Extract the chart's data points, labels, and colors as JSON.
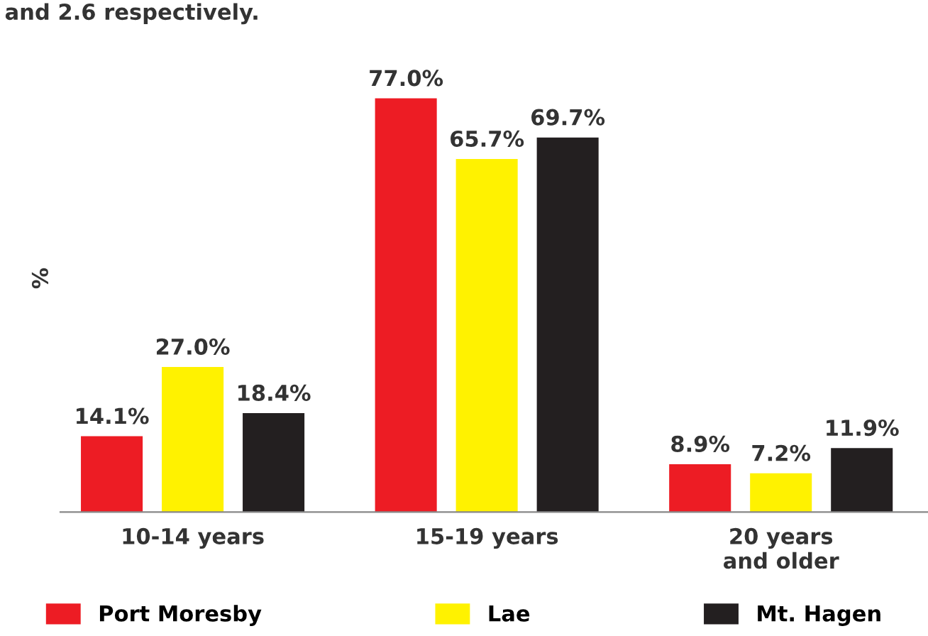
{
  "chart_data": {
    "type": "bar",
    "ylabel": "%",
    "annotations": [
      "and 2.6 respectively."
    ],
    "categories": [
      "10-14 years",
      "15-19 years",
      "20 years\nand older"
    ],
    "series": [
      {
        "name": "Port Moresby",
        "color": "#ed1c24",
        "values": [
          14.1,
          77.0,
          8.9
        ],
        "value_labels": [
          "14.1%",
          "77.0%",
          "8.9%"
        ]
      },
      {
        "name": "Lae",
        "color": "#fff200",
        "values": [
          27.0,
          65.7,
          7.2
        ],
        "value_labels": [
          "27.0%",
          "65.7%",
          "7.2%"
        ]
      },
      {
        "name": "Mt. Hagen",
        "color": "#231f20",
        "values": [
          18.4,
          69.7,
          11.9
        ],
        "value_labels": [
          "18.4%",
          "69.7%",
          "11.9%"
        ]
      }
    ],
    "legend": "bottom",
    "grid": false
  }
}
